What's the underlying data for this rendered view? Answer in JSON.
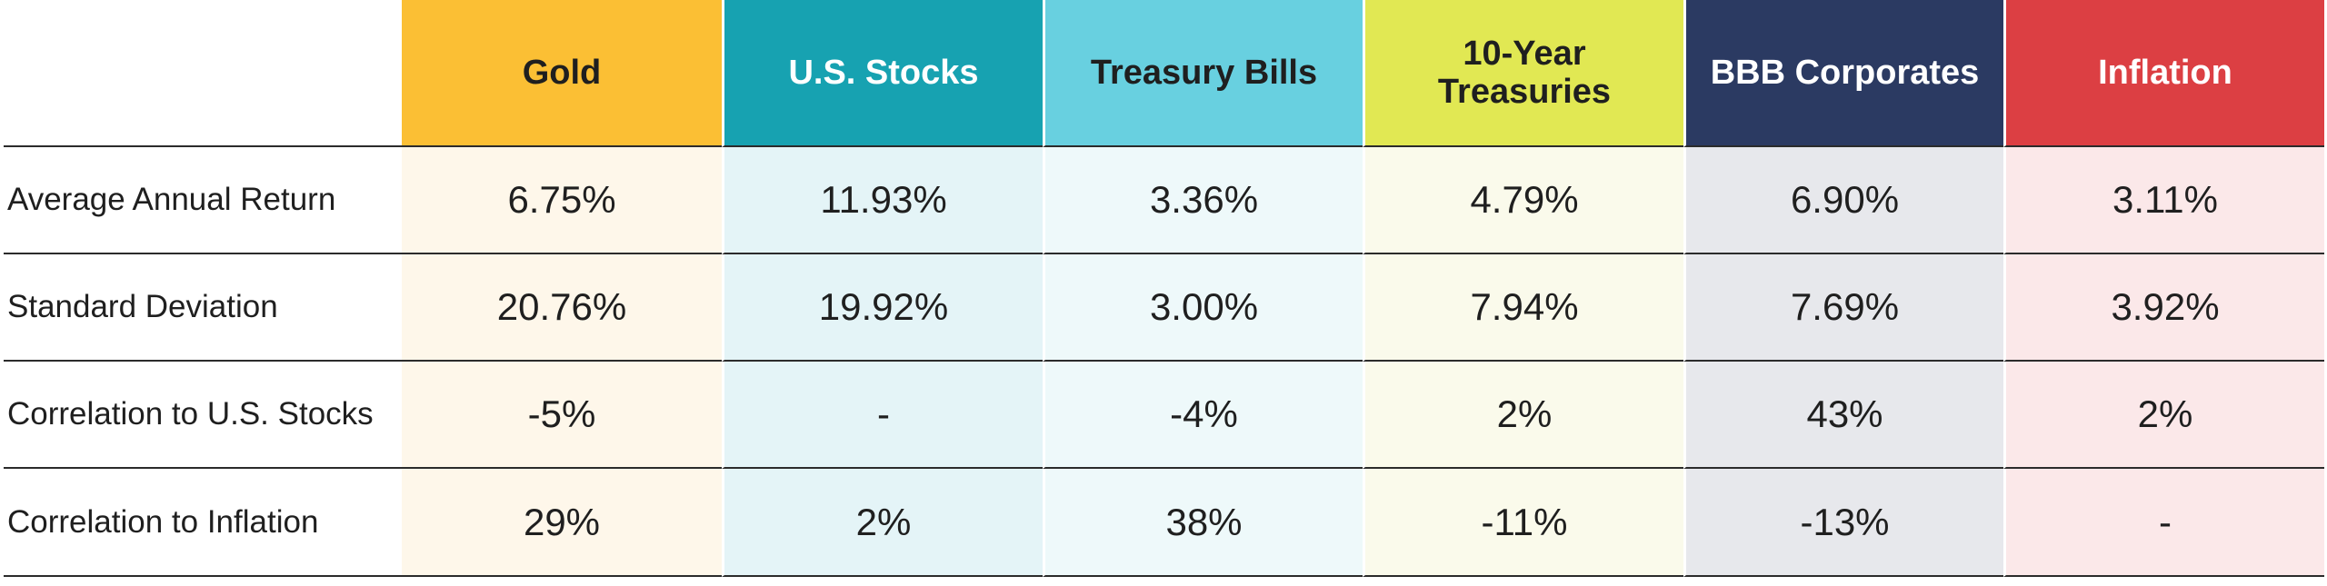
{
  "columns": [
    {
      "label": "Gold",
      "header_bg": "#FBBF34",
      "header_fg": "#1f1f1f",
      "body_bg": "#FEF7EA"
    },
    {
      "label": "U.S. Stocks",
      "header_bg": "#17A2B1",
      "header_fg": "#ffffff",
      "body_bg": "#E4F4F7"
    },
    {
      "label": "Treasury Bills",
      "header_bg": "#68D0E0",
      "header_fg": "#1f1f1f",
      "body_bg": "#EEF9FA"
    },
    {
      "label": "10-Year Treasuries",
      "header_bg": "#E1E853",
      "header_fg": "#1f1f1f",
      "body_bg": "#FAFAEB"
    },
    {
      "label": "BBB Corporates",
      "header_bg": "#2B3A62",
      "header_fg": "#ffffff",
      "body_bg": "#E7E8EC"
    },
    {
      "label": "Inflation",
      "header_bg": "#DC3F43",
      "header_fg": "#ffffff",
      "body_bg": "#FBE8E9"
    }
  ],
  "rows": [
    {
      "label": "Average Annual Return",
      "values": [
        "6.75%",
        "11.93%",
        "3.36%",
        "4.79%",
        "6.90%",
        "3.11%"
      ]
    },
    {
      "label": "Standard Deviation",
      "values": [
        "20.76%",
        "19.92%",
        "3.00%",
        "7.94%",
        "7.69%",
        "3.92%"
      ]
    },
    {
      "label": "Correlation to U.S. Stocks",
      "values": [
        "-5%",
        "-",
        "-4%",
        "2%",
        "43%",
        "2%"
      ]
    },
    {
      "label": "Correlation to Inflation",
      "values": [
        "29%",
        "2%",
        "38%",
        "-11%",
        "-13%",
        "-"
      ]
    }
  ]
}
